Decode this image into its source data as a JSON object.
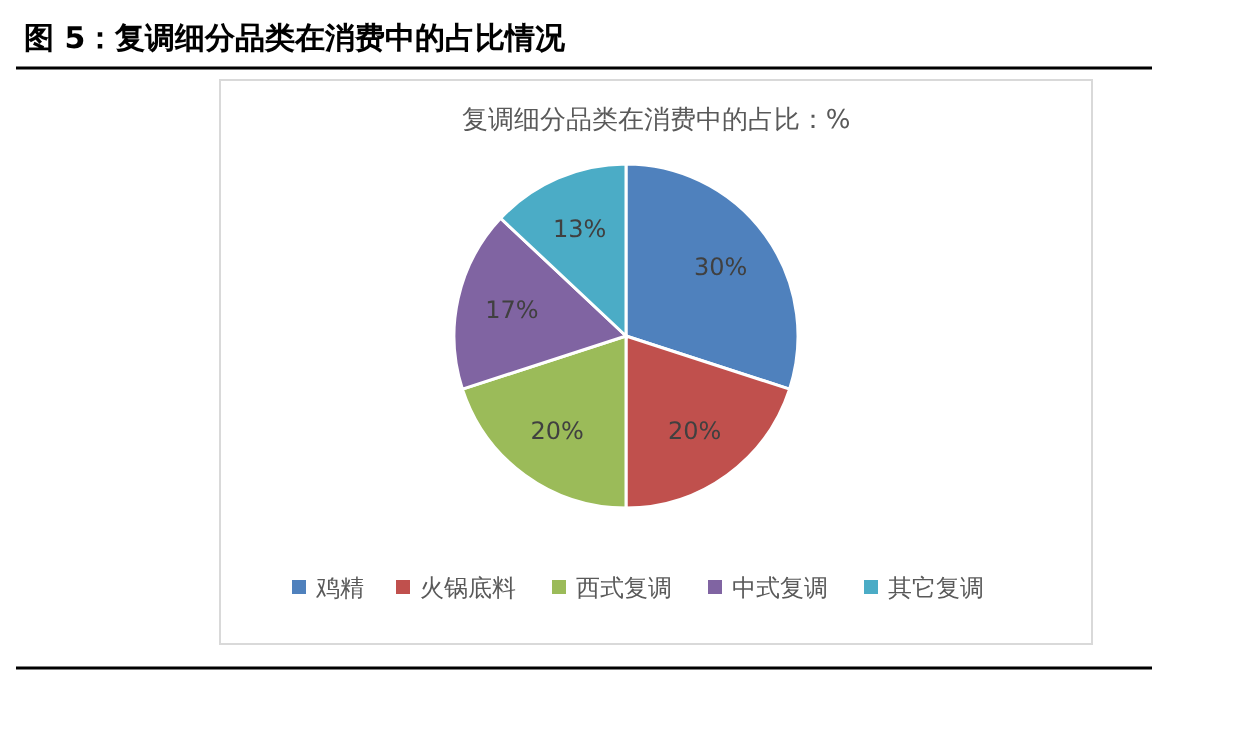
{
  "chart_data": {
    "type": "pie",
    "title": "图 5：复调细分品类在消费中的占比情况",
    "subtitle": "复调细分品类在消费中的占比：%",
    "categories": [
      "鸡精",
      "火锅底料",
      "西式复调",
      "中式复调",
      "其它复调"
    ],
    "values": [
      30,
      20,
      20,
      17,
      13
    ],
    "colors": [
      "#4f81bd",
      "#c0504d",
      "#9bbb59",
      "#8064a2",
      "#4bacc6"
    ],
    "value_labels": [
      "30%",
      "20%",
      "20%",
      "17%",
      "13%"
    ],
    "legend": "bottom"
  }
}
